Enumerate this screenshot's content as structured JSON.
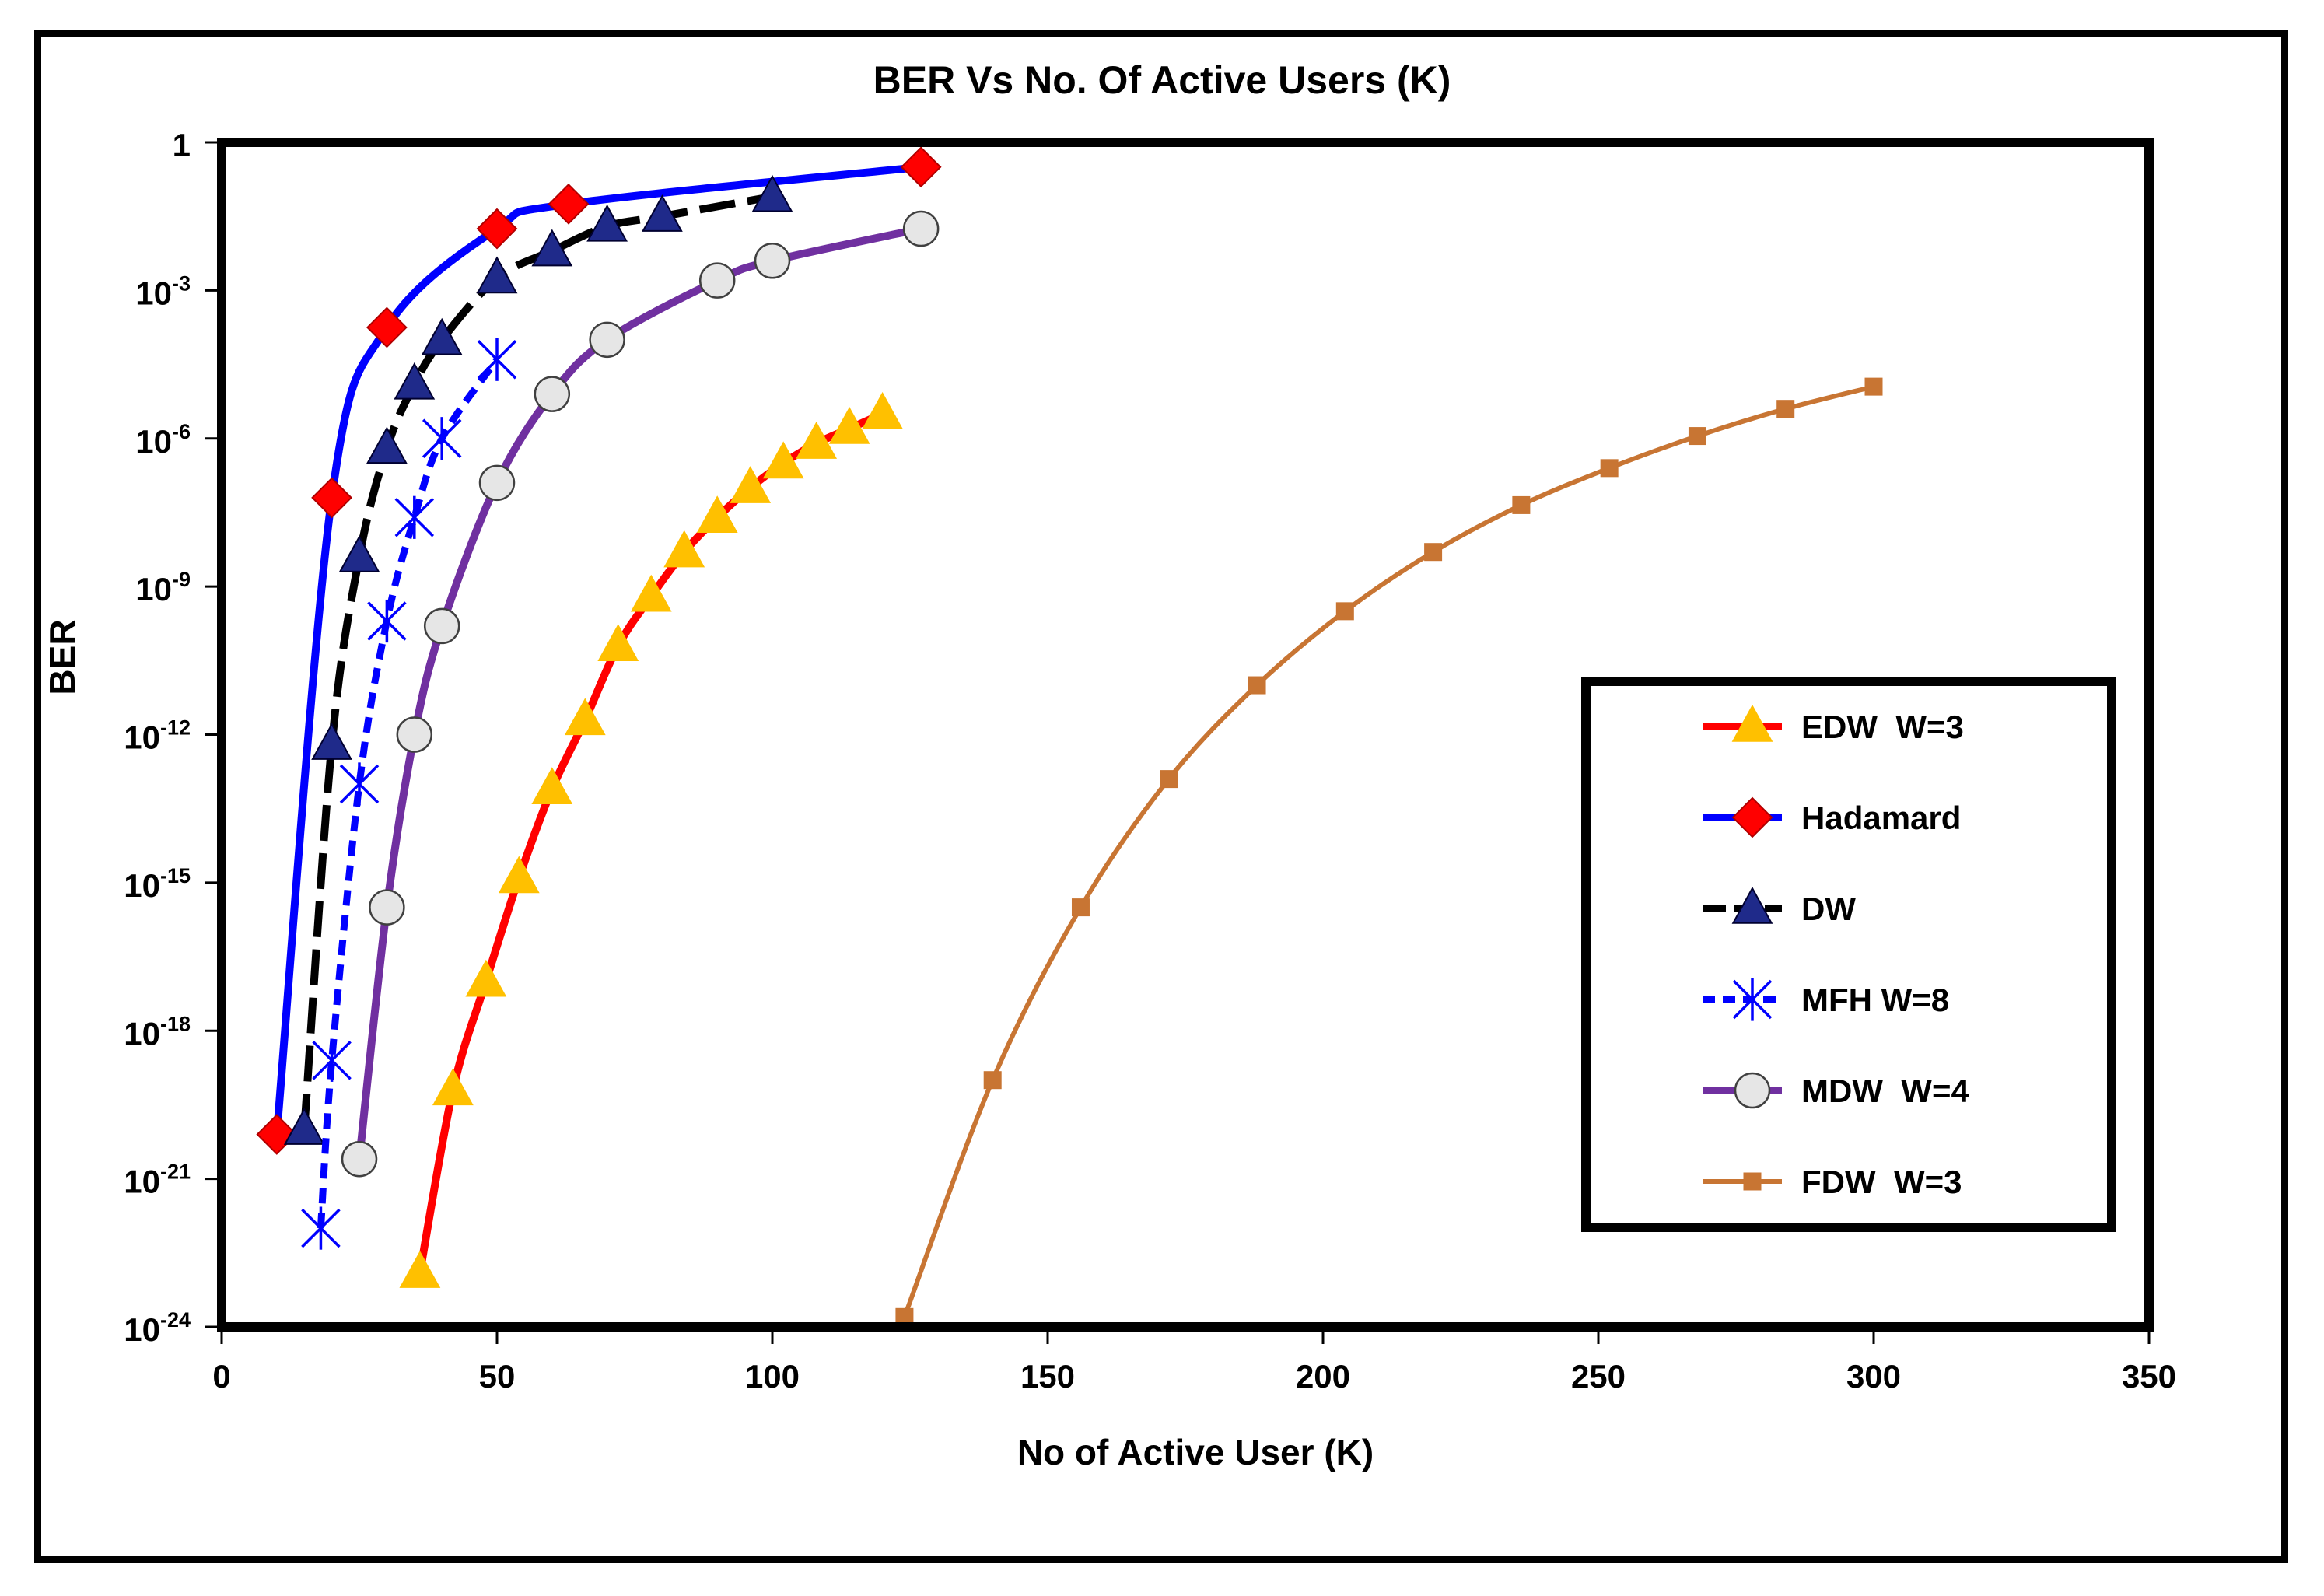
{
  "chart_data": {
    "type": "line",
    "title": "BER Vs No. Of Active Users (K)",
    "xlabel": "No of Active User (K)",
    "ylabel": "BER",
    "xlim": [
      0,
      350
    ],
    "ylim_log10": [
      -24,
      0
    ],
    "yscale": "log",
    "grid": false,
    "legend_position": "right",
    "x_ticks": [
      {
        "value": 0,
        "label": "0"
      },
      {
        "value": 50,
        "label": "50"
      },
      {
        "value": 100,
        "label": "100"
      },
      {
        "value": 150,
        "label": "150"
      },
      {
        "value": 200,
        "label": "200"
      },
      {
        "value": 250,
        "label": "250"
      },
      {
        "value": 300,
        "label": "300"
      },
      {
        "value": 350,
        "label": "350"
      }
    ],
    "y_ticks": [
      {
        "exp": 0,
        "base": "1",
        "sup": ""
      },
      {
        "exp": -3,
        "base": "10",
        "sup": "-3"
      },
      {
        "exp": -6,
        "base": "10",
        "sup": "-6"
      },
      {
        "exp": -9,
        "base": "10",
        "sup": "-9"
      },
      {
        "exp": -12,
        "base": "10",
        "sup": "-12"
      },
      {
        "exp": -15,
        "base": "10",
        "sup": "-15"
      },
      {
        "exp": -18,
        "base": "10",
        "sup": "-18"
      },
      {
        "exp": -21,
        "base": "10",
        "sup": "-21"
      },
      {
        "exp": -24,
        "base": "10",
        "sup": "-24"
      }
    ],
    "series": [
      {
        "name": "EDW  W=3",
        "line_color": "#ff0000",
        "marker_color": "#ffc000",
        "marker_stroke": "#ffc000",
        "marker": "triangle",
        "dash": "solid",
        "points": [
          [
            36,
            -22.9
          ],
          [
            42,
            -19.2
          ],
          [
            48,
            -17.0
          ],
          [
            54,
            -14.9
          ],
          [
            60,
            -13.1
          ],
          [
            66,
            -11.7
          ],
          [
            72,
            -10.2
          ],
          [
            78,
            -9.2
          ],
          [
            84,
            -8.3
          ],
          [
            90,
            -7.6
          ],
          [
            96,
            -7.0
          ],
          [
            102,
            -6.5
          ],
          [
            108,
            -6.1
          ],
          [
            114,
            -5.8
          ],
          [
            120,
            -5.5
          ]
        ]
      },
      {
        "name": "Hadamard",
        "line_color": "#0000ff",
        "marker_color": "#ff0000",
        "marker_stroke": "#b00000",
        "marker": "diamond",
        "dash": "solid",
        "points": [
          [
            10,
            -20.1
          ],
          [
            20,
            -7.2
          ],
          [
            30,
            -3.75
          ],
          [
            50,
            -1.75
          ],
          [
            63,
            -1.25
          ],
          [
            127,
            -0.5
          ]
        ]
      },
      {
        "name": "DW",
        "line_color": "#000000",
        "marker_color": "#1f2a8a",
        "marker_stroke": "#000030",
        "marker": "triangle",
        "dash": "dash",
        "points": [
          [
            15,
            -20.0
          ],
          [
            20,
            -12.2
          ],
          [
            25,
            -8.4
          ],
          [
            30,
            -6.2
          ],
          [
            35,
            -4.9
          ],
          [
            40,
            -4.0
          ],
          [
            50,
            -2.75
          ],
          [
            60,
            -2.2
          ],
          [
            70,
            -1.7
          ],
          [
            80,
            -1.5
          ],
          [
            100,
            -1.1
          ]
        ]
      },
      {
        "name": "MFH W=8",
        "line_color": "#0000ff",
        "marker_color": "#0000ff",
        "marker_stroke": "#0000ff",
        "marker": "star",
        "dash": "dot",
        "points": [
          [
            18,
            -22.0
          ],
          [
            20,
            -18.6
          ],
          [
            25,
            -13.0
          ],
          [
            30,
            -9.7
          ],
          [
            35,
            -7.6
          ],
          [
            40,
            -6.0
          ],
          [
            50,
            -4.4
          ]
        ]
      },
      {
        "name": "MDW  W=4",
        "line_color": "#7030a0",
        "marker_color": "#e6e6e6",
        "marker_stroke": "#404040",
        "marker": "circle",
        "dash": "solid",
        "points": [
          [
            25,
            -20.6
          ],
          [
            30,
            -15.5
          ],
          [
            35,
            -12.0
          ],
          [
            40,
            -9.8
          ],
          [
            50,
            -6.9
          ],
          [
            60,
            -5.1
          ],
          [
            70,
            -4.0
          ],
          [
            90,
            -2.8
          ],
          [
            100,
            -2.4
          ],
          [
            127,
            -1.75
          ]
        ]
      },
      {
        "name": "FDW  W=3",
        "line_color": "#c87533",
        "marker_color": "#c87533",
        "marker_stroke": "#c87533",
        "marker": "square",
        "dash": "solid",
        "points": [
          [
            124,
            -23.8
          ],
          [
            140,
            -19.0
          ],
          [
            156,
            -15.5
          ],
          [
            172,
            -12.9
          ],
          [
            188,
            -11.0
          ],
          [
            204,
            -9.5
          ],
          [
            220,
            -8.3
          ],
          [
            236,
            -7.35
          ],
          [
            252,
            -6.6
          ],
          [
            268,
            -5.95
          ],
          [
            284,
            -5.4
          ],
          [
            300,
            -4.95
          ]
        ]
      }
    ]
  }
}
